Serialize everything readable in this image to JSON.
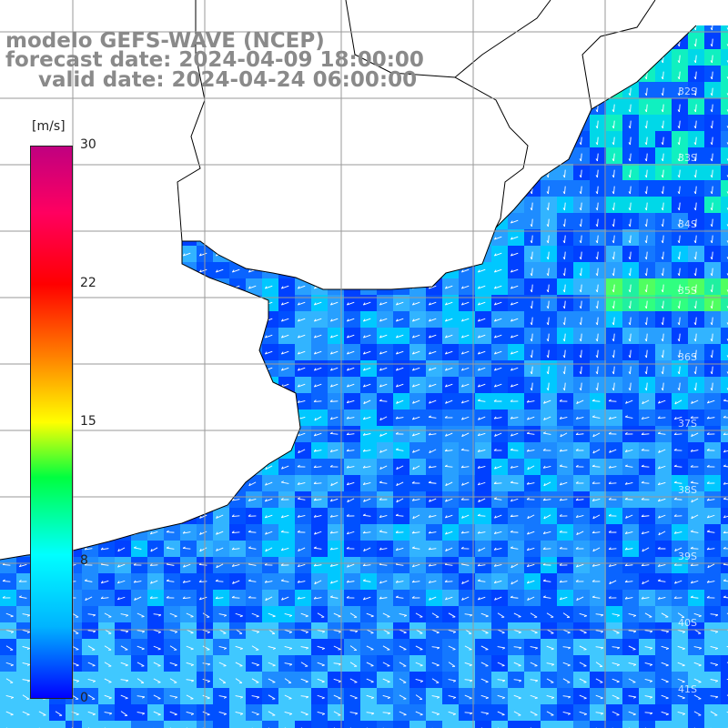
{
  "header": {
    "line1": "modelo GEFS-WAVE (NCEP)",
    "line2": "forecast date: 2024-04-09 18:00:00",
    "line3": "valid date: 2024-04-24 06:00:00"
  },
  "colorbar": {
    "unit": "[m/s]",
    "ticks": [
      "30",
      "22",
      "15",
      "8",
      "0"
    ],
    "colors": [
      "#0000ff",
      "#00b4ff",
      "#00ffff",
      "#00ff40",
      "#ffff00",
      "#ff8000",
      "#ff0000",
      "#c00080"
    ]
  },
  "lat_labels": [
    "32S",
    "33S",
    "34S",
    "35S",
    "36S",
    "37S",
    "38S",
    "39S",
    "40S",
    "41S"
  ],
  "land_color": "#ffffff",
  "grid_color": "#9a9a9a"
}
